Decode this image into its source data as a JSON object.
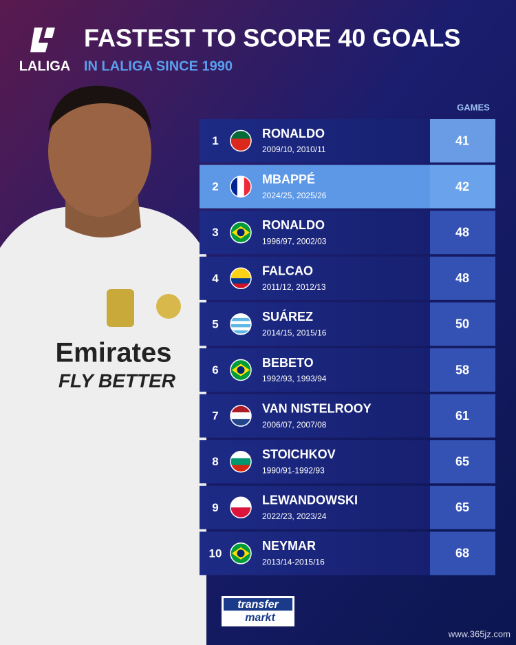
{
  "header": {
    "logo": "LALIGA",
    "title": "FASTEST TO SCORE 40 GOALS",
    "subtitle": "IN LALIGA SINCE 1990"
  },
  "shirt": {
    "sponsor": "Emirates",
    "slogan": "FLY BETTER"
  },
  "table": {
    "column_header": "GAMES",
    "rows": [
      {
        "rank": 1,
        "name": "RONALDO",
        "seasons": "2009/10, 2010/11",
        "games": 41
      },
      {
        "rank": 2,
        "name": "MBAPPÉ",
        "seasons": "2024/25, 2025/26",
        "games": 42
      },
      {
        "rank": 3,
        "name": "RONALDO",
        "seasons": "1996/97, 2002/03",
        "games": 48
      },
      {
        "rank": 4,
        "name": "FALCAO",
        "seasons": "2011/12, 2012/13",
        "games": 48
      },
      {
        "rank": 5,
        "name": "SUÁREZ",
        "seasons": "2014/15, 2015/16",
        "games": 50
      },
      {
        "rank": 6,
        "name": "BEBETO",
        "seasons": "1992/93, 1993/94",
        "games": 58
      },
      {
        "rank": 7,
        "name": "VAN NISTELROOY",
        "seasons": "2006/07, 2007/08",
        "games": 61
      },
      {
        "rank": 8,
        "name": "STOICHKOV",
        "seasons": "1990/91-1992/93",
        "games": 65
      },
      {
        "rank": 9,
        "name": "LEWANDOWSKI",
        "seasons": "2022/23, 2023/24",
        "games": 65
      },
      {
        "rank": 10,
        "name": "NEYMAR",
        "seasons": "2013/14-2015/16",
        "games": 68
      }
    ]
  },
  "footer": {
    "brand_top": "transfer",
    "brand_bottom": "markt",
    "watermark": "www.365jz.com"
  }
}
